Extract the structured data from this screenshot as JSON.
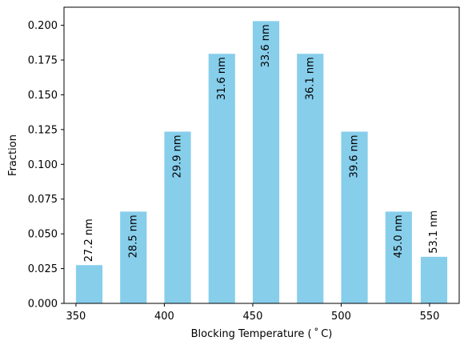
{
  "chart_data": {
    "type": "bar",
    "x": [
      357.5,
      382.5,
      407.5,
      432.5,
      457.5,
      482.5,
      507.5,
      532.5,
      552.5
    ],
    "values": [
      0.0275,
      0.066,
      0.1235,
      0.1795,
      0.203,
      0.1795,
      0.1235,
      0.066,
      0.0335
    ],
    "widths": [
      15,
      15,
      15,
      15,
      15,
      15,
      15,
      15,
      15
    ],
    "bar_labels": [
      "27.2 nm",
      "28.5 nm",
      "29.9 nm",
      "31.6 nm",
      "33.6 nm",
      "36.1 nm",
      "39.6 nm",
      "45.0 nm",
      "53.1 nm"
    ],
    "label_inside": [
      false,
      true,
      true,
      true,
      true,
      true,
      true,
      true,
      false
    ],
    "xlabel": "Blocking Temperature ($^\\circ$C)",
    "xlabel_display": "Blocking Temperature ( ˚ C)",
    "ylabel": "Fraction",
    "xlim": [
      343.25,
      566.75
    ],
    "ylim": [
      0,
      0.213
    ],
    "xticks": [
      350,
      400,
      450,
      500,
      550
    ],
    "yticks": [
      0.0,
      0.025,
      0.05,
      0.075,
      0.1,
      0.125,
      0.15,
      0.175,
      0.2
    ],
    "ytick_labels": [
      "0.000",
      "0.025",
      "0.050",
      "0.075",
      "0.100",
      "0.125",
      "0.150",
      "0.175",
      "0.200"
    ],
    "bar_color": "#87ceeb",
    "grid": false,
    "legend": false
  }
}
